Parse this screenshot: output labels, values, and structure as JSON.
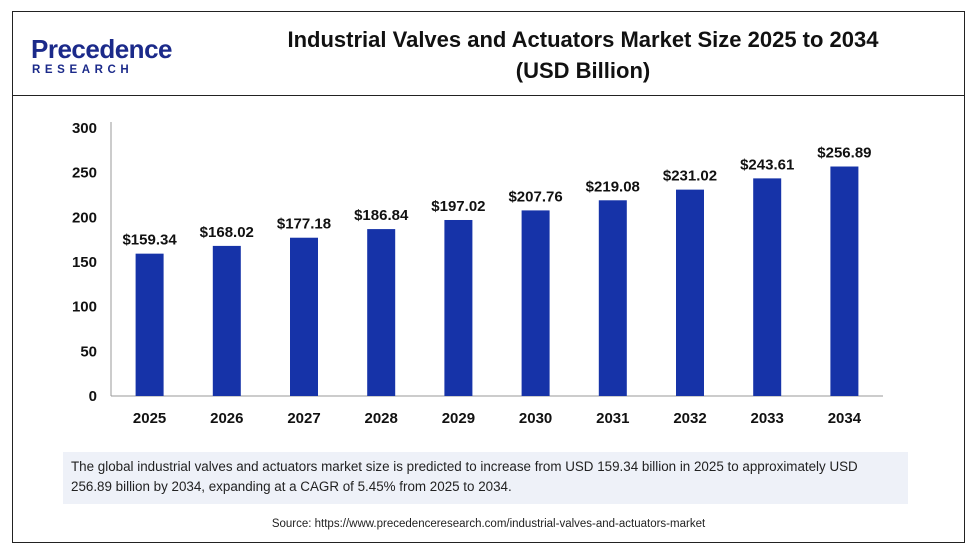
{
  "header": {
    "logo_word": "Precedence",
    "logo_sub": "RESEARCH",
    "title_line1": "Industrial Valves and Actuators Market Size 2025 to 2034",
    "title_line2": "(USD Billion)"
  },
  "colors": {
    "bar": "#1633a8",
    "brand": "#1b2a8a",
    "note_bg": "#eef1f8"
  },
  "chart_data": {
    "type": "bar",
    "categories": [
      "2025",
      "2026",
      "2027",
      "2028",
      "2029",
      "2030",
      "2031",
      "2032",
      "2033",
      "2034"
    ],
    "values": [
      159.34,
      168.02,
      177.18,
      186.84,
      197.02,
      207.76,
      219.08,
      231.02,
      243.61,
      256.89
    ],
    "data_labels": [
      "$159.34",
      "$168.02",
      "$177.18",
      "$186.84",
      "$197.02",
      "$207.76",
      "$219.08",
      "$231.02",
      "$243.61",
      "$256.89"
    ],
    "yticks": [
      "0",
      "50",
      "100",
      "150",
      "200",
      "250",
      "300"
    ],
    "ylim": [
      0,
      300
    ],
    "grid": false,
    "legend": "none"
  },
  "note_text": "The global industrial valves and actuators market size is predicted to increase from USD 159.34 billion in 2025 to approximately USD 256.89 billion by 2034, expanding at a CAGR of 5.45% from 2025 to 2034.",
  "source_text": "Source: https://www.precedenceresearch.com/industrial-valves-and-actuators-market"
}
